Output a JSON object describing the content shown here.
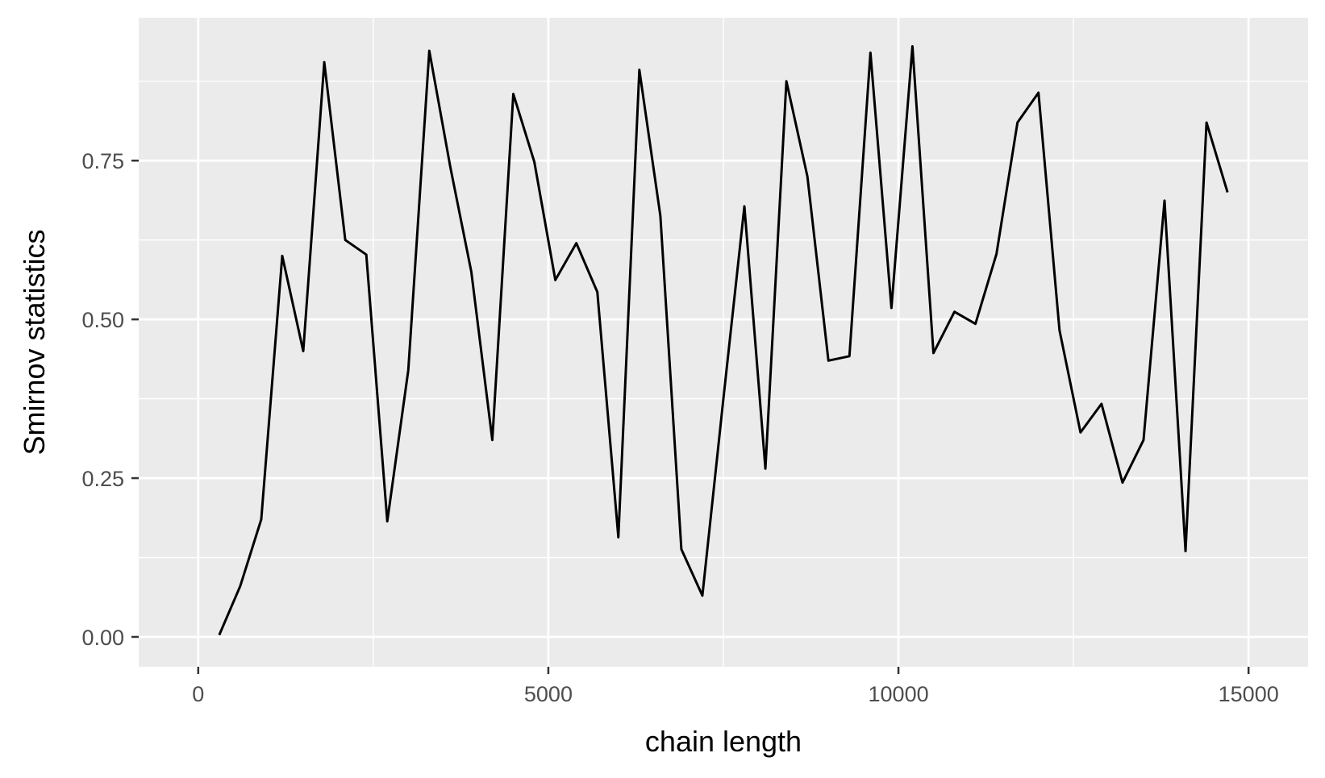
{
  "chart_data": {
    "type": "line",
    "title": "",
    "xlabel": "chain length",
    "ylabel": "Smirnov statistics",
    "xlim": [
      -850,
      15850
    ],
    "ylim": [
      -0.047,
      0.975
    ],
    "x_major_ticks": [
      0,
      5000,
      10000,
      15000
    ],
    "x_tick_labels": [
      "0",
      "5000",
      "10000",
      "15000"
    ],
    "x_minor_ticks": [
      2500,
      7500,
      12500
    ],
    "y_major_ticks": [
      0.0,
      0.25,
      0.5,
      0.75
    ],
    "y_tick_labels": [
      "0.00",
      "0.25",
      "0.50",
      "0.75"
    ],
    "y_minor_ticks": [
      0.125,
      0.375,
      0.625,
      0.875
    ],
    "grid": true,
    "colors": {
      "panel": "#ebebeb",
      "grid": "#ffffff",
      "line": "#000000",
      "tick_text": "#4d4d4d",
      "axis_text": "#000000"
    },
    "series": [
      {
        "x": [
          300,
          600,
          900,
          1200,
          1500,
          1800,
          2100,
          2400,
          2700,
          3000,
          3300,
          3600,
          3900,
          4200,
          4500,
          4800,
          5100,
          5400,
          5700,
          6000,
          6300,
          6600,
          6900,
          7200,
          7500,
          7800,
          8100,
          8400,
          8700,
          9000,
          9300,
          9600,
          9900,
          10200,
          10500,
          10800,
          11100,
          11400,
          11700,
          12000,
          12300,
          12600,
          12900,
          13200,
          13500,
          13800,
          14100,
          14400,
          14700
        ],
        "y": [
          0.003,
          0.08,
          0.185,
          0.6,
          0.45,
          0.905,
          0.625,
          0.602,
          0.182,
          0.42,
          0.923,
          0.74,
          0.575,
          0.31,
          0.855,
          0.748,
          0.562,
          0.62,
          0.543,
          0.157,
          0.893,
          0.663,
          0.138,
          0.065,
          0.375,
          0.678,
          0.265,
          0.875,
          0.725,
          0.435,
          0.442,
          0.92,
          0.518,
          0.93,
          0.447,
          0.512,
          0.493,
          0.603,
          0.81,
          0.857,
          0.483,
          0.322,
          0.367,
          0.243,
          0.31,
          0.687,
          0.135,
          0.81,
          0.7
        ]
      }
    ]
  }
}
